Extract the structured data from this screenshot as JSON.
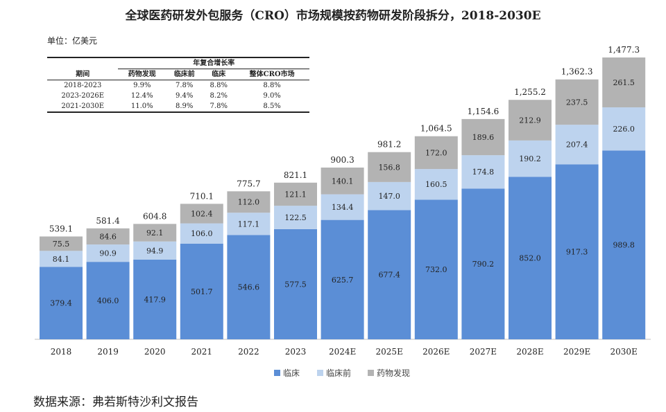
{
  "unit_label": "单位：亿美元",
  "source_text": "数据来源：弗若斯特沙利文报告",
  "cagr_table": {
    "group_header": "年复合增长率",
    "headers": [
      "期间",
      "药物发现",
      "临床前",
      "临床",
      "整体CRO市场"
    ],
    "rows": [
      [
        "2018-2023",
        "9.9%",
        "7.8%",
        "8.8%",
        "8.8%"
      ],
      [
        "2023-2026E",
        "12.4%",
        "9.4%",
        "8.2%",
        "9.0%"
      ],
      [
        "2021-2030E",
        "11.0%",
        "8.9%",
        "7.8%",
        "8.5%"
      ]
    ]
  },
  "chart_data": {
    "type": "bar",
    "stacked": true,
    "title": "全球医药研发外包服务（CRO）市场规模按药物研发阶段拆分，2018-2030E",
    "categories": [
      "2018",
      "2019",
      "2020",
      "2021",
      "2022",
      "2023",
      "2024E",
      "2025E",
      "2026E",
      "2027E",
      "2028E",
      "2029E",
      "2030E"
    ],
    "series": [
      {
        "name": "临床",
        "color": "#5b8ed6",
        "values": [
          379.4,
          406.0,
          417.9,
          501.7,
          546.6,
          577.5,
          625.7,
          677.4,
          732.0,
          790.2,
          852.0,
          917.3,
          989.8
        ]
      },
      {
        "name": "临床前",
        "color": "#bdd3ee",
        "values": [
          84.1,
          90.9,
          94.9,
          106.0,
          117.1,
          122.5,
          134.4,
          147.0,
          160.5,
          174.8,
          190.2,
          207.4,
          226.0
        ]
      },
      {
        "name": "药物发现",
        "color": "#b3b3b3",
        "values": [
          75.5,
          84.6,
          92.1,
          102.4,
          112.0,
          121.1,
          140.1,
          156.8,
          172.0,
          189.6,
          212.9,
          237.5,
          261.5
        ]
      }
    ],
    "value_labels": [
      [
        "379.4",
        "406.0",
        "417.9",
        "501.7",
        "546.6",
        "577.5",
        "625.7",
        "677.4",
        "732.0",
        "790.2",
        "852.0",
        "917.3",
        "989.8"
      ],
      [
        "84.1",
        "90.9",
        "94.9",
        "106.0",
        "117.1",
        "122.5",
        "134.4",
        "147.0",
        "160.5",
        "174.8",
        "190.2",
        "207.4",
        "226.0"
      ],
      [
        "75.5",
        "84.6",
        "92.1",
        "102.4",
        "112.0",
        "121.1",
        "140.1",
        "156.8",
        "172.0",
        "189.6",
        "212.9",
        "237.5",
        "261.5"
      ]
    ],
    "totals": [
      "539.1",
      "581.4",
      "604.8",
      "710.1",
      "775.7",
      "821.1",
      "900.3",
      "981.2",
      "1,064.5",
      "1,154.6",
      "1,255.2",
      "1,362.3",
      "1,477.3"
    ],
    "legend_position": "bottom",
    "grid": false,
    "ylim": [
      0,
      1477.3
    ]
  }
}
